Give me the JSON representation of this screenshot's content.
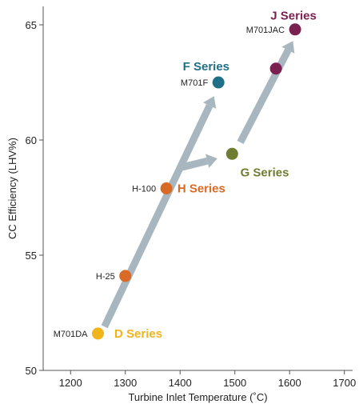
{
  "chart_data": {
    "type": "scatter",
    "title": "",
    "xlabel": "Turbine Inlet Temperature (˚C)",
    "ylabel": "CC Efficiency (LHV%)",
    "xlim": [
      1150,
      1715
    ],
    "ylim": [
      50,
      65.8
    ],
    "xticks": [
      1200,
      1300,
      1400,
      1500,
      1600,
      1700
    ],
    "yticks": [
      50,
      55,
      60,
      65
    ],
    "grid": false,
    "colors": {
      "D Series": "#f0b41c",
      "H Series": "#d96a26",
      "F Series": "#1f6f86",
      "G Series": "#6f7d32",
      "J Series": "#7a2150",
      "arrow": "#a7b6bf"
    },
    "points": [
      {
        "label": "M701DA",
        "series": "D Series",
        "x": 1250,
        "y": 51.6
      },
      {
        "label": "H-25",
        "series": "H Series",
        "x": 1300,
        "y": 54.1
      },
      {
        "label": "H-100",
        "series": "H Series",
        "x": 1375,
        "y": 57.9
      },
      {
        "label": "M701F",
        "series": "F Series",
        "x": 1470,
        "y": 62.5
      },
      {
        "label": "",
        "series": "G Series",
        "x": 1495,
        "y": 59.4
      },
      {
        "label": "",
        "series": "J Series",
        "x": 1575,
        "y": 63.1
      },
      {
        "label": "M701JAC",
        "series": "J Series",
        "x": 1610,
        "y": 64.8
      }
    ],
    "series_labels": [
      {
        "name": "D Series",
        "x": 1280,
        "y": 51.6
      },
      {
        "name": "H Series",
        "x": 1395,
        "y": 57.9
      },
      {
        "name": "F Series",
        "x": 1405,
        "y": 63.2
      },
      {
        "name": "G Series",
        "x": 1510,
        "y": 58.6
      },
      {
        "name": "J Series",
        "x": 1565,
        "y": 65.4
      }
    ],
    "arrows": [
      {
        "from": [
          1262,
          51.9
        ],
        "via": [
          [
            1400,
            58.8
          ]
        ],
        "to": [
          1462,
          61.9
        ],
        "to_series": "F Series"
      },
      {
        "from": [
          1400,
          58.8
        ],
        "via": [],
        "to": [
          1468,
          59.2
        ],
        "to_series": "G Series"
      },
      {
        "from": [
          1510,
          59.9
        ],
        "via": [],
        "to": [
          1606,
          64.3
        ],
        "to_series": "J Series"
      }
    ]
  }
}
